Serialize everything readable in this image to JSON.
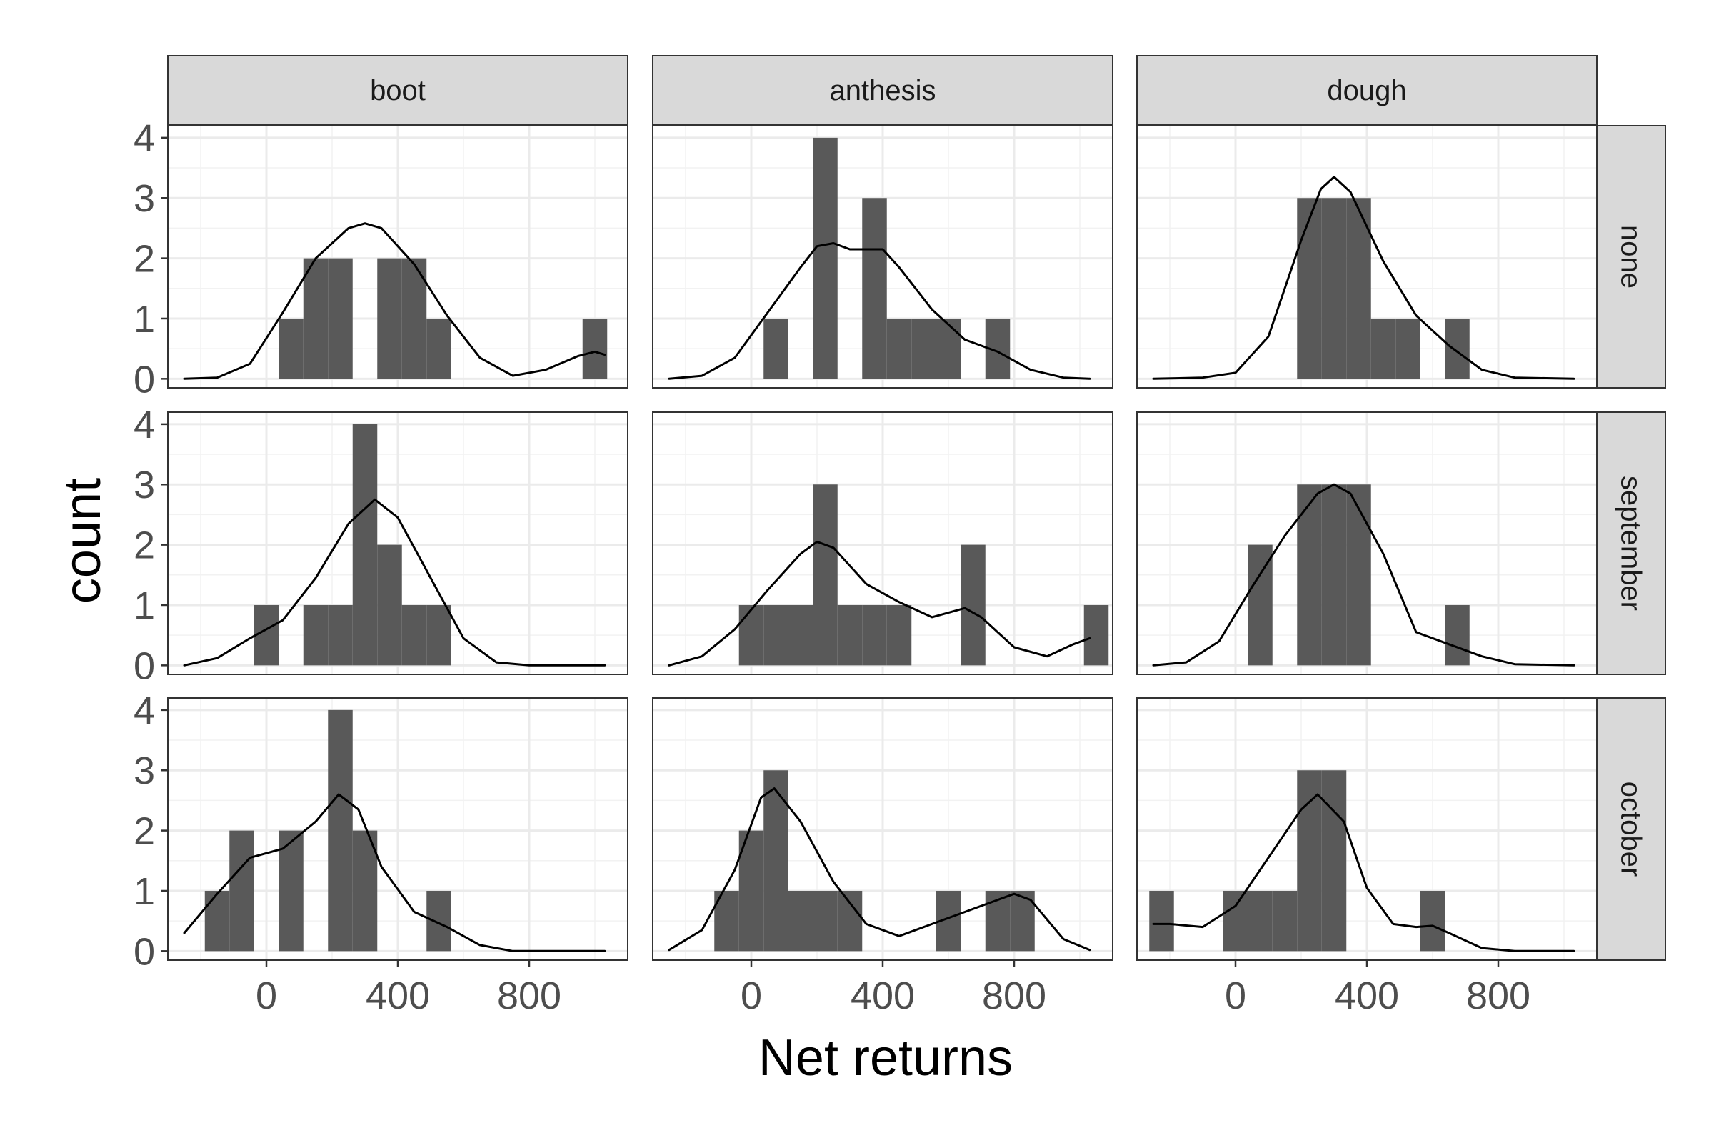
{
  "chart_data": {
    "type": "histogram",
    "facet_columns": [
      "boot",
      "anthesis",
      "dough"
    ],
    "facet_rows": [
      "none",
      "september",
      "october"
    ],
    "xlabel": "Net returns",
    "ylabel": "count",
    "xlim": [
      -300,
      1100
    ],
    "ylim": [
      -0.15,
      4.2
    ],
    "x_ticks": [
      0,
      400,
      800
    ],
    "y_ticks": [
      0,
      1,
      2,
      3,
      4
    ],
    "bin_width": 75,
    "bar_color": "#595959",
    "density_color": "#000000",
    "panels": [
      {
        "column": "boot",
        "row": "none",
        "bars": [
          [
            75,
            1
          ],
          [
            150,
            2
          ],
          [
            225,
            2
          ],
          [
            375,
            2
          ],
          [
            450,
            2
          ],
          [
            525,
            1
          ],
          [
            1000,
            1
          ]
        ],
        "density": [
          [
            -250,
            0
          ],
          [
            -150,
            0.02
          ],
          [
            -50,
            0.25
          ],
          [
            50,
            1.1
          ],
          [
            150,
            2.0
          ],
          [
            250,
            2.5
          ],
          [
            300,
            2.58
          ],
          [
            350,
            2.5
          ],
          [
            450,
            1.9
          ],
          [
            550,
            1.05
          ],
          [
            650,
            0.35
          ],
          [
            750,
            0.05
          ],
          [
            850,
            0.15
          ],
          [
            950,
            0.38
          ],
          [
            1000,
            0.45
          ],
          [
            1030,
            0.4
          ]
        ]
      },
      {
        "column": "anthesis",
        "row": "none",
        "bars": [
          [
            75,
            1
          ],
          [
            225,
            4
          ],
          [
            375,
            3
          ],
          [
            450,
            1
          ],
          [
            525,
            1
          ],
          [
            600,
            1
          ],
          [
            750,
            1
          ]
        ],
        "density": [
          [
            -250,
            0
          ],
          [
            -150,
            0.05
          ],
          [
            -50,
            0.35
          ],
          [
            50,
            1.1
          ],
          [
            150,
            1.85
          ],
          [
            200,
            2.2
          ],
          [
            250,
            2.25
          ],
          [
            300,
            2.15
          ],
          [
            400,
            2.15
          ],
          [
            450,
            1.85
          ],
          [
            550,
            1.15
          ],
          [
            650,
            0.65
          ],
          [
            750,
            0.45
          ],
          [
            850,
            0.15
          ],
          [
            950,
            0.02
          ],
          [
            1030,
            0
          ]
        ]
      },
      {
        "column": "dough",
        "row": "none",
        "bars": [
          [
            225,
            3
          ],
          [
            300,
            3
          ],
          [
            375,
            3
          ],
          [
            450,
            1
          ],
          [
            525,
            1
          ],
          [
            675,
            1
          ]
        ],
        "density": [
          [
            -250,
            0
          ],
          [
            -100,
            0.02
          ],
          [
            0,
            0.1
          ],
          [
            100,
            0.7
          ],
          [
            200,
            2.3
          ],
          [
            260,
            3.15
          ],
          [
            300,
            3.35
          ],
          [
            350,
            3.1
          ],
          [
            450,
            1.95
          ],
          [
            550,
            1.05
          ],
          [
            650,
            0.55
          ],
          [
            750,
            0.15
          ],
          [
            850,
            0.02
          ],
          [
            1030,
            0
          ]
        ]
      },
      {
        "column": "boot",
        "row": "september",
        "bars": [
          [
            0,
            1
          ],
          [
            150,
            1
          ],
          [
            225,
            1
          ],
          [
            300,
            4
          ],
          [
            375,
            2
          ],
          [
            450,
            1
          ],
          [
            525,
            1
          ]
        ],
        "density": [
          [
            -250,
            0
          ],
          [
            -150,
            0.12
          ],
          [
            -50,
            0.45
          ],
          [
            50,
            0.75
          ],
          [
            150,
            1.45
          ],
          [
            250,
            2.35
          ],
          [
            330,
            2.75
          ],
          [
            400,
            2.45
          ],
          [
            500,
            1.45
          ],
          [
            600,
            0.45
          ],
          [
            700,
            0.05
          ],
          [
            800,
            0
          ],
          [
            1030,
            0
          ]
        ]
      },
      {
        "column": "anthesis",
        "row": "september",
        "bars": [
          [
            0,
            1
          ],
          [
            75,
            1
          ],
          [
            150,
            1
          ],
          [
            225,
            3
          ],
          [
            300,
            1
          ],
          [
            375,
            1
          ],
          [
            450,
            1
          ],
          [
            675,
            2
          ],
          [
            1050,
            1
          ]
        ],
        "density": [
          [
            -250,
            0
          ],
          [
            -150,
            0.15
          ],
          [
            -50,
            0.6
          ],
          [
            50,
            1.25
          ],
          [
            150,
            1.85
          ],
          [
            200,
            2.05
          ],
          [
            250,
            1.95
          ],
          [
            350,
            1.35
          ],
          [
            450,
            1.05
          ],
          [
            550,
            0.8
          ],
          [
            650,
            0.95
          ],
          [
            700,
            0.8
          ],
          [
            800,
            0.3
          ],
          [
            900,
            0.15
          ],
          [
            980,
            0.35
          ],
          [
            1030,
            0.45
          ]
        ]
      },
      {
        "column": "dough",
        "row": "september",
        "bars": [
          [
            75,
            2
          ],
          [
            225,
            3
          ],
          [
            300,
            3
          ],
          [
            375,
            3
          ],
          [
            675,
            1
          ]
        ],
        "density": [
          [
            -250,
            0
          ],
          [
            -150,
            0.05
          ],
          [
            -50,
            0.4
          ],
          [
            50,
            1.3
          ],
          [
            150,
            2.15
          ],
          [
            250,
            2.85
          ],
          [
            300,
            3.0
          ],
          [
            350,
            2.85
          ],
          [
            450,
            1.85
          ],
          [
            550,
            0.55
          ],
          [
            650,
            0.35
          ],
          [
            750,
            0.15
          ],
          [
            850,
            0.02
          ],
          [
            1030,
            0
          ]
        ]
      },
      {
        "column": "boot",
        "row": "october",
        "bars": [
          [
            -150,
            1
          ],
          [
            -75,
            2
          ],
          [
            75,
            2
          ],
          [
            225,
            4
          ],
          [
            300,
            2
          ],
          [
            525,
            1
          ]
        ],
        "density": [
          [
            -250,
            0.3
          ],
          [
            -150,
            0.95
          ],
          [
            -50,
            1.55
          ],
          [
            50,
            1.7
          ],
          [
            150,
            2.15
          ],
          [
            220,
            2.6
          ],
          [
            280,
            2.35
          ],
          [
            350,
            1.4
          ],
          [
            450,
            0.65
          ],
          [
            550,
            0.4
          ],
          [
            650,
            0.1
          ],
          [
            750,
            0
          ],
          [
            1030,
            0
          ]
        ]
      },
      {
        "column": "anthesis",
        "row": "october",
        "bars": [
          [
            -75,
            1
          ],
          [
            0,
            2
          ],
          [
            75,
            3
          ],
          [
            150,
            1
          ],
          [
            225,
            1
          ],
          [
            300,
            1
          ],
          [
            600,
            1
          ],
          [
            750,
            1
          ],
          [
            825,
            1
          ]
        ],
        "density": [
          [
            -250,
            0.02
          ],
          [
            -150,
            0.35
          ],
          [
            -50,
            1.35
          ],
          [
            30,
            2.55
          ],
          [
            70,
            2.7
          ],
          [
            150,
            2.15
          ],
          [
            250,
            1.15
          ],
          [
            350,
            0.45
          ],
          [
            450,
            0.25
          ],
          [
            550,
            0.45
          ],
          [
            650,
            0.65
          ],
          [
            750,
            0.85
          ],
          [
            800,
            0.95
          ],
          [
            850,
            0.85
          ],
          [
            950,
            0.2
          ],
          [
            1030,
            0.02
          ]
        ]
      },
      {
        "column": "dough",
        "row": "october",
        "bars": [
          [
            -225,
            1
          ],
          [
            0,
            1
          ],
          [
            75,
            1
          ],
          [
            150,
            1
          ],
          [
            225,
            3
          ],
          [
            300,
            3
          ],
          [
            600,
            1
          ]
        ],
        "density": [
          [
            -250,
            0.45
          ],
          [
            -200,
            0.45
          ],
          [
            -100,
            0.4
          ],
          [
            0,
            0.75
          ],
          [
            100,
            1.55
          ],
          [
            200,
            2.35
          ],
          [
            250,
            2.6
          ],
          [
            330,
            2.15
          ],
          [
            400,
            1.05
          ],
          [
            480,
            0.45
          ],
          [
            550,
            0.4
          ],
          [
            600,
            0.42
          ],
          [
            650,
            0.3
          ],
          [
            750,
            0.05
          ],
          [
            850,
            0
          ],
          [
            1030,
            0
          ]
        ]
      }
    ]
  }
}
